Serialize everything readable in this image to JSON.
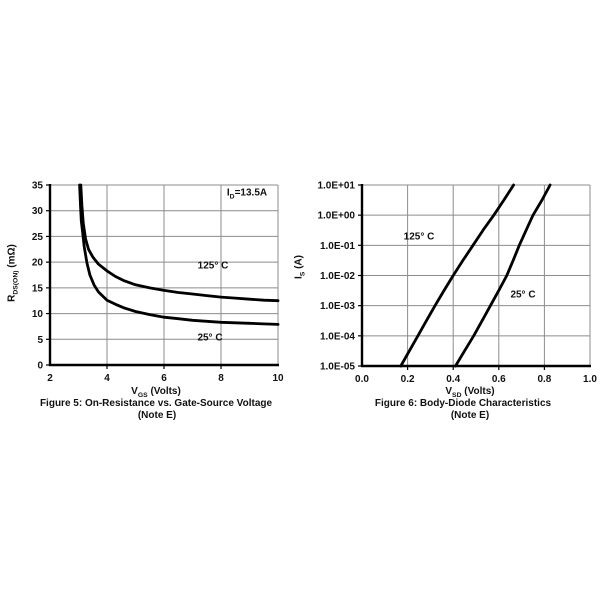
{
  "colors": {
    "background": "#ffffff",
    "grid": "#8c8c8c",
    "axis": "#000000",
    "curve": "#000000",
    "text": "#111111"
  },
  "chart_data": [
    {
      "id": "fig5",
      "type": "line",
      "title": "Figure 5: On-Resistance vs. Gate-Source Voltage",
      "note": "(Note E)",
      "xlabel": {
        "main": "V",
        "sub": "GS",
        "rest": " (Volts)"
      },
      "ylabel": {
        "main": "R",
        "sub": "DS(ON)",
        "rest": " (mΩ)"
      },
      "annotation": {
        "main": "I",
        "sub": "D",
        "rest": "=13.5A"
      },
      "x_scale": "linear",
      "y_scale": "linear",
      "xlim": [
        2,
        10
      ],
      "ylim": [
        0,
        35
      ],
      "grid": true,
      "x_ticks": [
        {
          "label": "2",
          "value": 2
        },
        {
          "label": "4",
          "value": 4
        },
        {
          "label": "6",
          "value": 6
        },
        {
          "label": "8",
          "value": 8
        },
        {
          "label": "10",
          "value": 10
        }
      ],
      "y_ticks": [
        {
          "label": "0",
          "value": 0
        },
        {
          "label": "5",
          "value": 5
        },
        {
          "label": "10",
          "value": 10
        },
        {
          "label": "15",
          "value": 15
        },
        {
          "label": "20",
          "value": 20
        },
        {
          "label": "25",
          "value": 25
        },
        {
          "label": "30",
          "value": 30
        },
        {
          "label": "35",
          "value": 35
        }
      ],
      "series": [
        {
          "name": "125° C",
          "points": [
            [
              3.08,
              35
            ],
            [
              3.12,
              31
            ],
            [
              3.17,
              27.5
            ],
            [
              3.25,
              24.5
            ],
            [
              3.35,
              22.5
            ],
            [
              3.5,
              21
            ],
            [
              3.7,
              19.6
            ],
            [
              4.0,
              18.3
            ],
            [
              4.3,
              17.2
            ],
            [
              4.6,
              16.4
            ],
            [
              5.0,
              15.6
            ],
            [
              5.5,
              15.0
            ],
            [
              6.0,
              14.5
            ],
            [
              6.5,
              14.1
            ],
            [
              7.0,
              13.8
            ],
            [
              7.5,
              13.5
            ],
            [
              8.0,
              13.2
            ],
            [
              8.5,
              13.0
            ],
            [
              9.0,
              12.8
            ],
            [
              9.5,
              12.6
            ],
            [
              10.0,
              12.5
            ]
          ]
        },
        {
          "name": "25° C",
          "points": [
            [
              3.04,
              35
            ],
            [
              3.07,
              31
            ],
            [
              3.1,
              28
            ],
            [
              3.15,
              25.5
            ],
            [
              3.2,
              23
            ],
            [
              3.3,
              19.8
            ],
            [
              3.4,
              17.5
            ],
            [
              3.55,
              15.5
            ],
            [
              3.7,
              14.2
            ],
            [
              4.0,
              12.6
            ],
            [
              4.3,
              11.8
            ],
            [
              4.6,
              11.1
            ],
            [
              5.0,
              10.4
            ],
            [
              5.5,
              9.8
            ],
            [
              6.0,
              9.3
            ],
            [
              6.5,
              9.0
            ],
            [
              7.0,
              8.7
            ],
            [
              7.5,
              8.5
            ],
            [
              8.0,
              8.3
            ],
            [
              8.5,
              8.2
            ],
            [
              9.0,
              8.1
            ],
            [
              9.5,
              8.0
            ],
            [
              10.0,
              7.9
            ]
          ]
        }
      ]
    },
    {
      "id": "fig6",
      "type": "line",
      "title": "Figure 6: Body-Diode Characteristics",
      "note": "(Note E)",
      "xlabel": {
        "main": "V",
        "sub": "SD",
        "rest": " (Volts)"
      },
      "ylabel": {
        "main": "I",
        "sub": "S",
        "rest": " (A)"
      },
      "x_scale": "linear",
      "y_scale": "log",
      "xlim": [
        0.0,
        1.0
      ],
      "ylim": [
        1e-05,
        10
      ],
      "grid": true,
      "x_ticks": [
        {
          "label": "0.0",
          "value": 0.0
        },
        {
          "label": "0.2",
          "value": 0.2
        },
        {
          "label": "0.4",
          "value": 0.4
        },
        {
          "label": "0.6",
          "value": 0.6
        },
        {
          "label": "0.8",
          "value": 0.8
        },
        {
          "label": "1.0",
          "value": 1.0
        }
      ],
      "y_ticks": [
        {
          "label": "1.0E-05",
          "value": 1e-05
        },
        {
          "label": "1.0E-04",
          "value": 0.0001
        },
        {
          "label": "1.0E-03",
          "value": 0.001
        },
        {
          "label": "1.0E-02",
          "value": 0.01
        },
        {
          "label": "1.0E-01",
          "value": 0.1
        },
        {
          "label": "1.0E+00",
          "value": 1
        },
        {
          "label": "1.0E+01",
          "value": 10
        }
      ],
      "series": [
        {
          "name": "125° C",
          "points": [
            [
              0.17,
              1e-05
            ],
            [
              0.208,
              3.2e-05
            ],
            [
              0.245,
              0.0001
            ],
            [
              0.283,
              0.00032
            ],
            [
              0.32,
              0.001
            ],
            [
              0.36,
              0.0032
            ],
            [
              0.4,
              0.01
            ],
            [
              0.443,
              0.032
            ],
            [
              0.487,
              0.1
            ],
            [
              0.531,
              0.32
            ],
            [
              0.578,
              1
            ],
            [
              0.623,
              3.2
            ],
            [
              0.665,
              10
            ]
          ]
        },
        {
          "name": "25° C",
          "points": [
            [
              0.41,
              1e-05
            ],
            [
              0.45,
              3.2e-05
            ],
            [
              0.49,
              0.0001
            ],
            [
              0.527,
              0.00032
            ],
            [
              0.563,
              0.001
            ],
            [
              0.6,
              0.0032
            ],
            [
              0.635,
              0.01
            ],
            [
              0.663,
              0.032
            ],
            [
              0.69,
              0.1
            ],
            [
              0.72,
              0.32
            ],
            [
              0.75,
              1
            ],
            [
              0.79,
              3.2
            ],
            [
              0.825,
              10
            ]
          ]
        }
      ]
    }
  ]
}
